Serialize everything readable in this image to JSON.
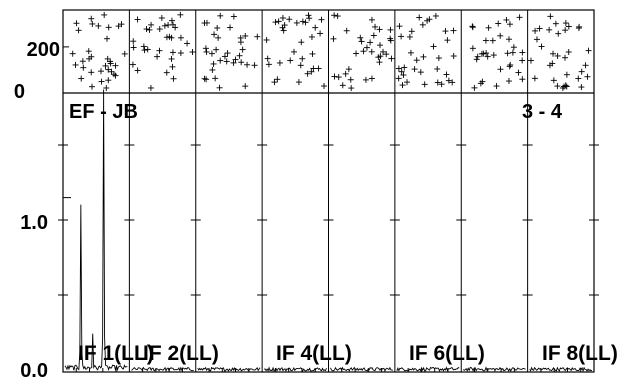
{
  "chart_data": {
    "type": "line",
    "upper_panel": {
      "type": "scatter",
      "y_ticks": [
        0,
        200
      ],
      "ylim": [
        0,
        360
      ],
      "marker": "+"
    },
    "lower_panel": {
      "y_ticks": [
        "0.0",
        "1.0"
      ],
      "ylim": [
        0,
        1.6
      ],
      "baseline_label": "EF - JB",
      "correlator_label": "3 - 4",
      "if_labels": [
        "IF 1(LL)",
        "IF 2(LL)",
        "IF 4(LL)",
        "IF 6(LL)",
        "IF 8(LL)"
      ],
      "series": [
        {
          "if": "IF 1(LL)",
          "peaks": [
            {
              "channel_fraction": 0.26,
              "amplitude": 0.96
            },
            {
              "channel_fraction": 0.62,
              "amplitude": 1.62
            },
            {
              "channel_fraction": 0.45,
              "amplitude": 0.22
            }
          ],
          "noise_level": 0.03
        }
      ],
      "noise_level_other_ifs": 0.02,
      "panel_count": 8
    },
    "colors": {
      "line": "#000000",
      "background": "#ffffff"
    }
  }
}
